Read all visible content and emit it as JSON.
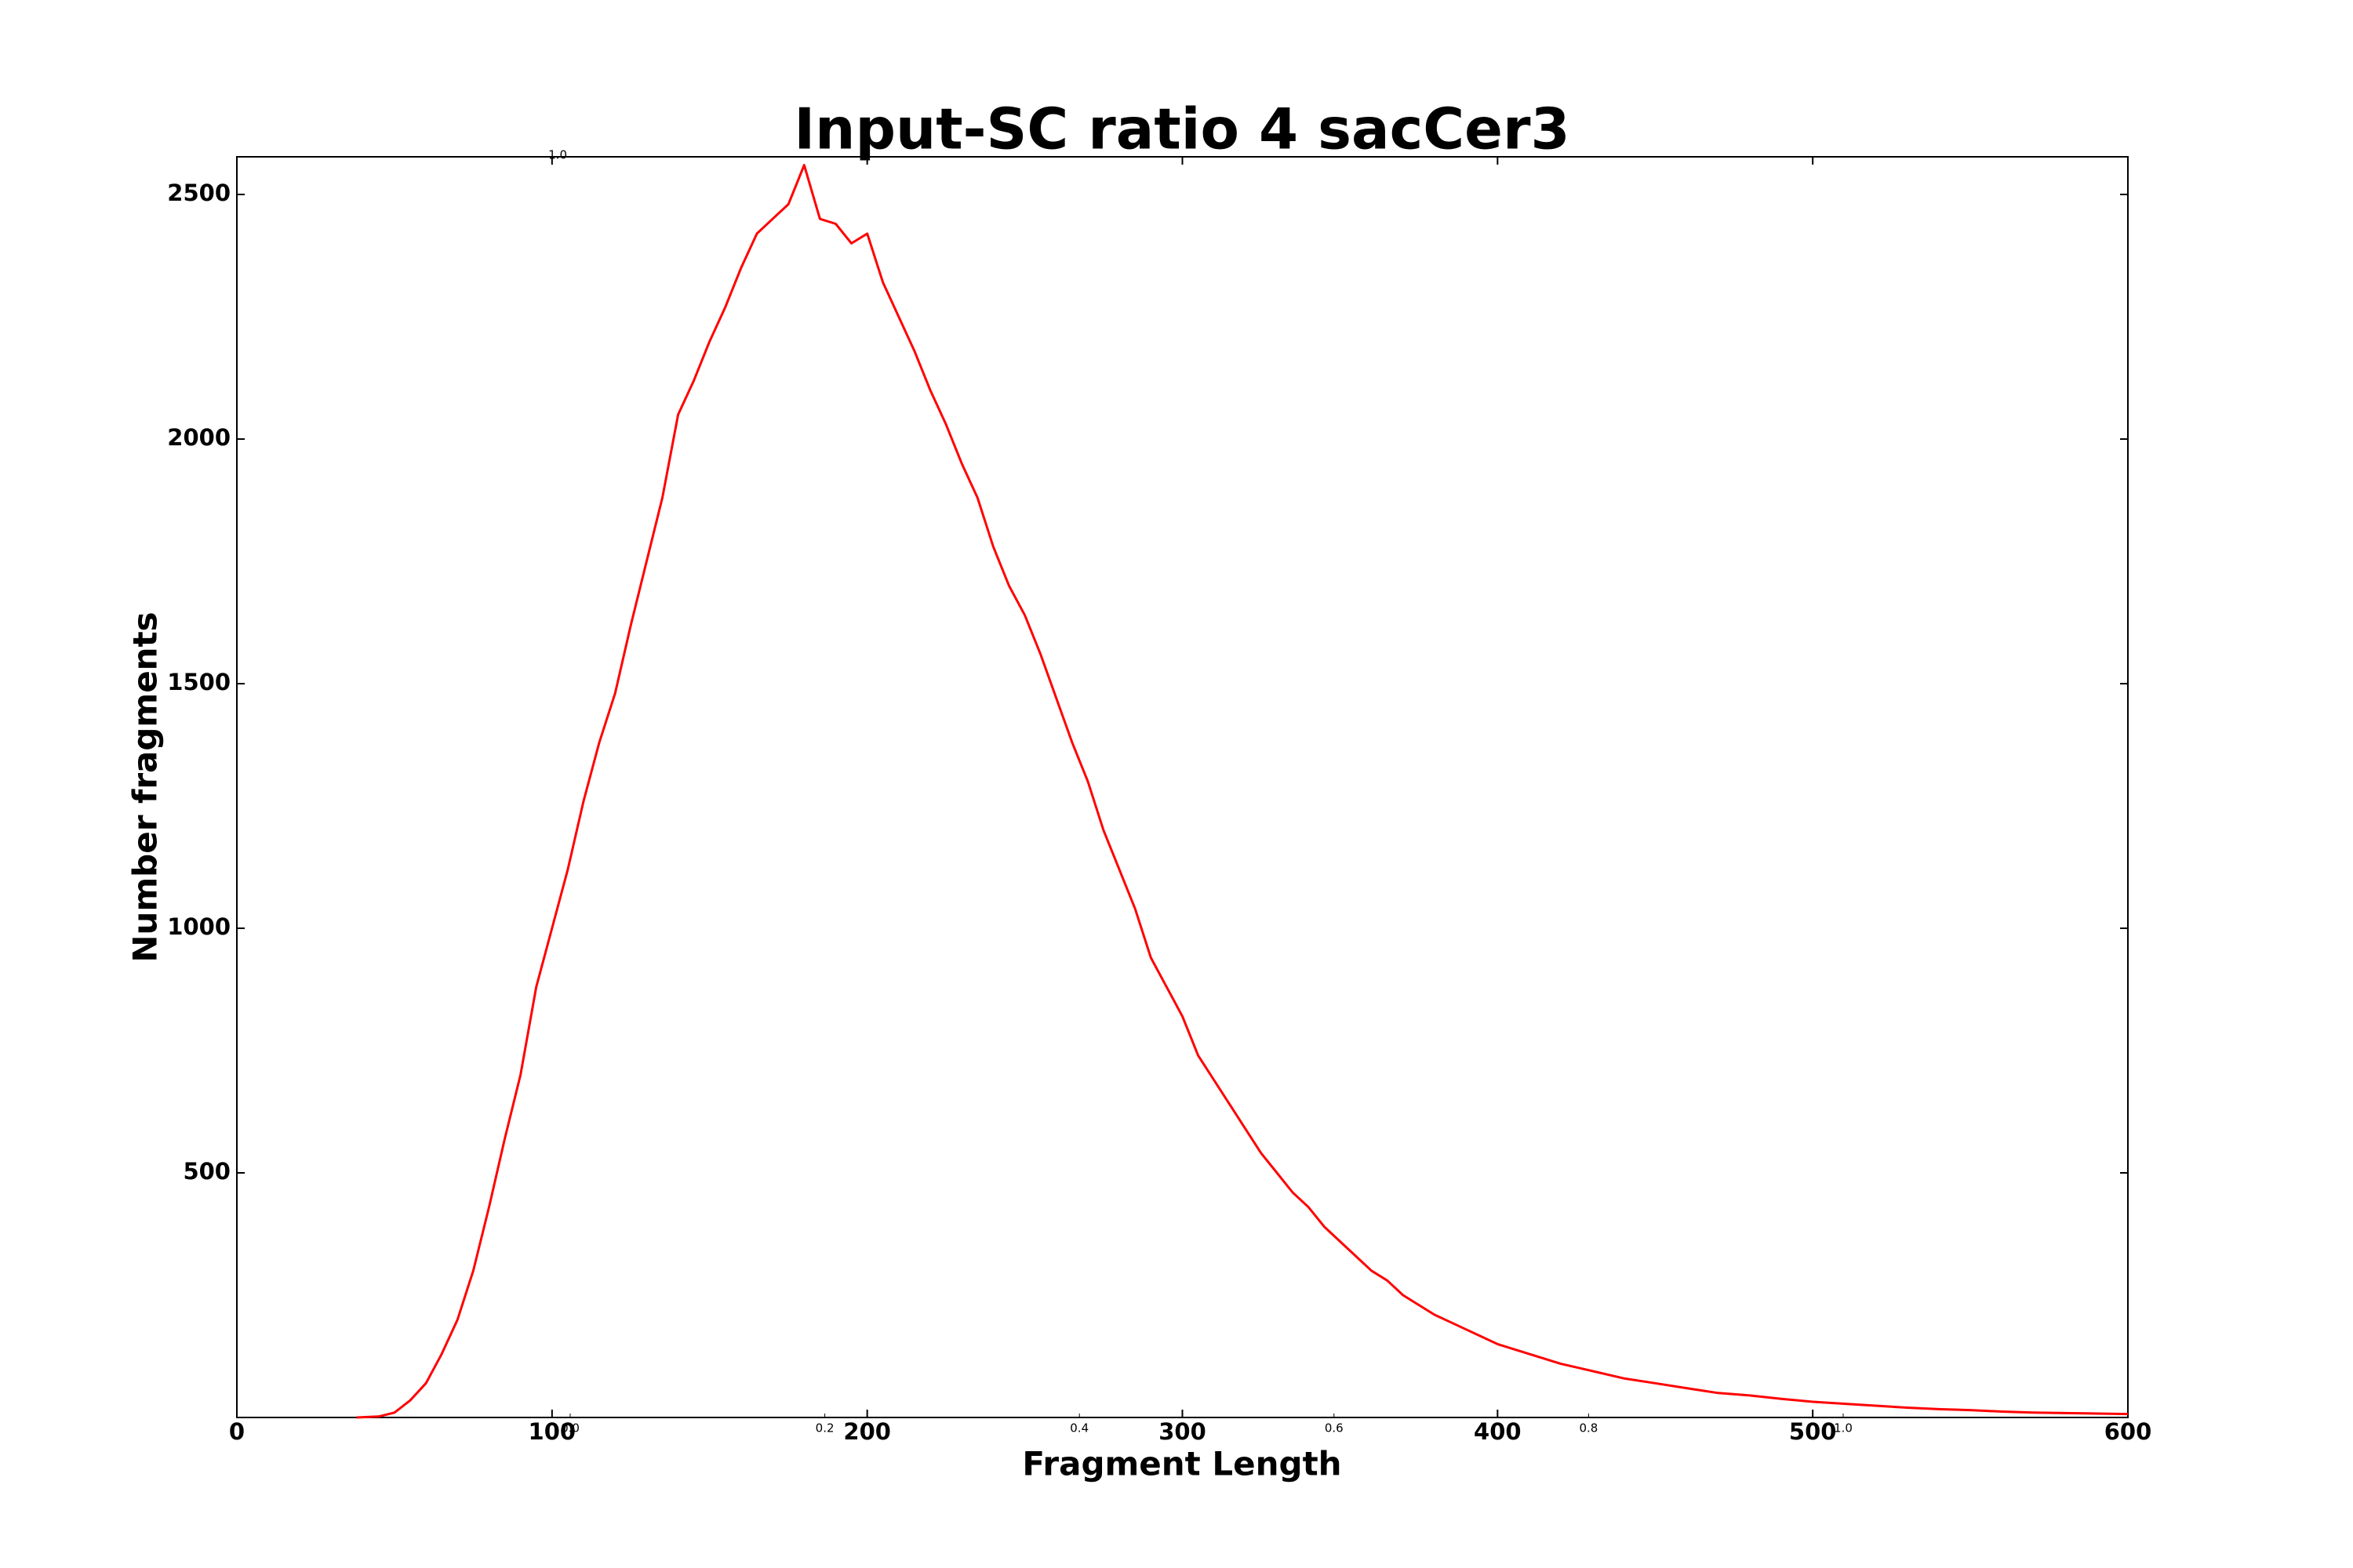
{
  "chart_data": {
    "type": "line",
    "title": "Input-SC ratio 4 sacCer3",
    "xlabel": "Fragment Length",
    "ylabel": "Number fragments",
    "x": [
      38,
      45,
      50,
      55,
      60,
      65,
      70,
      75,
      80,
      85,
      90,
      95,
      100,
      105,
      110,
      115,
      120,
      125,
      130,
      135,
      140,
      145,
      150,
      155,
      160,
      165,
      170,
      175,
      180,
      185,
      190,
      195,
      200,
      205,
      210,
      215,
      220,
      225,
      230,
      235,
      240,
      245,
      250,
      255,
      260,
      265,
      270,
      275,
      280,
      285,
      290,
      295,
      300,
      305,
      310,
      315,
      320,
      325,
      330,
      335,
      340,
      345,
      350,
      355,
      360,
      365,
      370,
      375,
      380,
      385,
      390,
      395,
      400,
      410,
      420,
      430,
      440,
      450,
      460,
      470,
      480,
      490,
      500,
      510,
      520,
      530,
      540,
      550,
      560,
      570,
      580,
      590,
      600
    ],
    "series": [
      {
        "name": "Number fragments",
        "color": "#ff0000",
        "values": [
          0,
          2,
          10,
          35,
          70,
          130,
          200,
          300,
          430,
          570,
          700,
          880,
          1000,
          1120,
          1260,
          1380,
          1480,
          1620,
          1750,
          1880,
          2050,
          2120,
          2200,
          2270,
          2350,
          2420,
          2450,
          2480,
          2560,
          2450,
          2440,
          2400,
          2420,
          2320,
          2250,
          2180,
          2100,
          2030,
          1950,
          1880,
          1780,
          1700,
          1640,
          1560,
          1470,
          1380,
          1300,
          1200,
          1120,
          1040,
          940,
          880,
          820,
          740,
          690,
          640,
          590,
          540,
          500,
          460,
          430,
          390,
          360,
          330,
          300,
          280,
          250,
          230,
          210,
          195,
          180,
          165,
          150,
          130,
          110,
          95,
          80,
          70,
          60,
          50,
          45,
          38,
          32,
          28,
          24,
          20,
          17,
          15,
          12,
          10,
          9,
          8,
          7
        ]
      }
    ],
    "xlim": [
      0,
      600
    ],
    "xticks": [
      0,
      100,
      200,
      300,
      400,
      500,
      600
    ],
    "ylim": [
      0,
      2577
    ],
    "yticks": [
      500,
      1000,
      1500,
      2000,
      2500
    ],
    "overlay_axis": {
      "xlim": [
        0,
        1
      ],
      "ylim": [
        0,
        1
      ],
      "xticks": [
        {
          "value": 0,
          "label": "0.0"
        },
        {
          "value": 0.2,
          "label": "0.2"
        },
        {
          "value": 0.4,
          "label": "0.4"
        },
        {
          "value": 0.6,
          "label": "0.6"
        },
        {
          "value": 0.8,
          "label": "0.8"
        },
        {
          "value": 1,
          "label": "1.0"
        }
      ],
      "yticks": [
        {
          "value": 1,
          "label": "1.0"
        }
      ]
    }
  }
}
